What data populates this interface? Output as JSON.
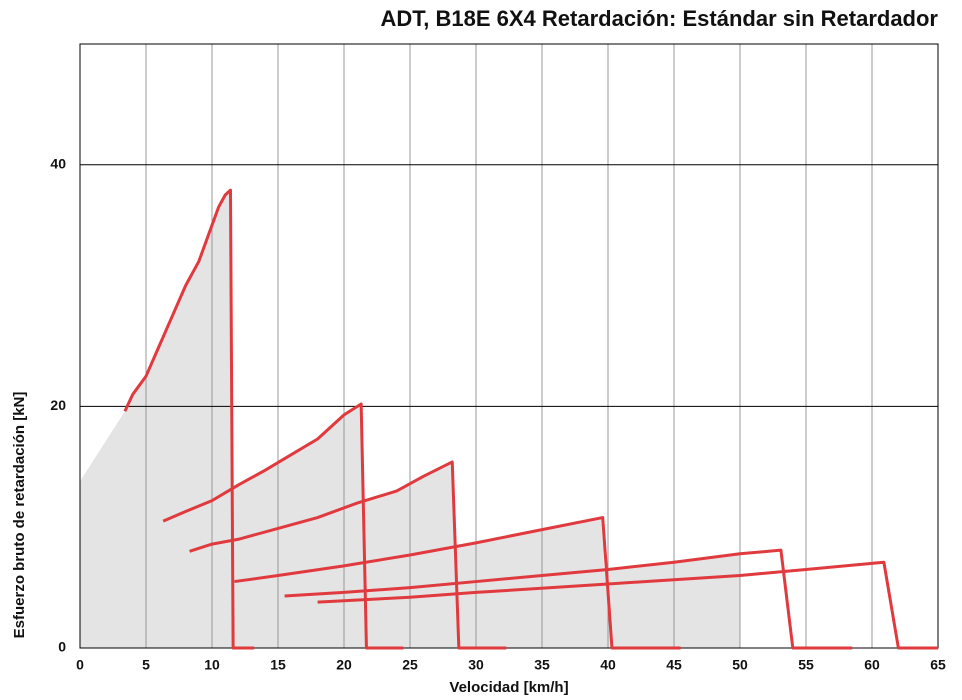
{
  "chart_data": {
    "type": "line",
    "title": "ADT, B18E 6X4 Retardación: Estándar sin Retardador",
    "x_label": "Velocidad [km/h]",
    "y_label": "Esfuerzo bruto de retardación [kN]",
    "xlim": [
      0,
      65
    ],
    "ylim": [
      0,
      50
    ],
    "xticks": [
      0,
      5,
      10,
      15,
      20,
      25,
      30,
      35,
      40,
      45,
      50,
      55,
      60,
      65
    ],
    "yticks": [
      0,
      20,
      40
    ],
    "area": {
      "color": "#e4e4e4",
      "x": [
        0,
        3.4,
        4,
        5,
        6,
        7,
        8,
        9,
        10,
        10.5,
        11,
        11.4,
        11.5,
        12,
        14,
        16,
        18,
        20,
        21.3,
        21.4,
        24,
        26,
        28.2,
        28.3,
        30,
        35,
        39.6,
        39.7,
        45,
        50,
        50,
        0
      ],
      "values": [
        13.8,
        19.6,
        21,
        22.5,
        25,
        27.5,
        30,
        32,
        35,
        36.5,
        37.5,
        37.9,
        13.3,
        13.5,
        14.7,
        16,
        17.3,
        19.3,
        20.2,
        12.1,
        13,
        14.2,
        15.4,
        8.5,
        8.7,
        9.8,
        10.8,
        6.5,
        7.1,
        7.8,
        0,
        0
      ]
    },
    "series": [
      {
        "color": "#e03a3e",
        "x": [
          3.4,
          4,
          5,
          6,
          7,
          8,
          9,
          10,
          10.5,
          11,
          11.4,
          11.6,
          13.2
        ],
        "values": [
          19.6,
          21,
          22.5,
          25,
          27.5,
          30,
          32,
          35,
          36.5,
          37.5,
          37.9,
          0,
          0
        ]
      },
      {
        "color": "#e03a3e",
        "x": [
          6.3,
          8,
          10,
          12,
          14,
          16,
          18,
          20,
          21.3,
          21.7,
          24.5
        ],
        "values": [
          10.5,
          11.3,
          12.2,
          13.5,
          14.7,
          16,
          17.3,
          19.3,
          20.2,
          0,
          0
        ]
      },
      {
        "color": "#e03a3e",
        "x": [
          8.3,
          10,
          12,
          15,
          18,
          21,
          24,
          26,
          28.2,
          28.7,
          32.3
        ],
        "values": [
          8,
          8.6,
          9,
          9.9,
          10.8,
          12,
          13,
          14.2,
          15.4,
          0,
          0
        ]
      },
      {
        "color": "#e03a3e",
        "x": [
          11.7,
          15,
          20,
          25,
          30,
          35,
          39.6,
          40.3,
          45.5
        ],
        "values": [
          5.5,
          6,
          6.8,
          7.7,
          8.7,
          9.8,
          10.8,
          0,
          0
        ]
      },
      {
        "color": "#e03a3e",
        "x": [
          15.5,
          20,
          25,
          30,
          35,
          40,
          45,
          50,
          53.1,
          54,
          58.5
        ],
        "values": [
          4.3,
          4.6,
          5,
          5.5,
          6,
          6.5,
          7.1,
          7.8,
          8.1,
          0,
          0
        ]
      },
      {
        "color": "#e03a3e",
        "x": [
          18,
          25,
          30,
          40,
          50,
          55,
          60.9,
          62,
          65
        ],
        "values": [
          3.8,
          4.2,
          4.6,
          5.3,
          6,
          6.5,
          7.1,
          0,
          0
        ]
      }
    ]
  }
}
